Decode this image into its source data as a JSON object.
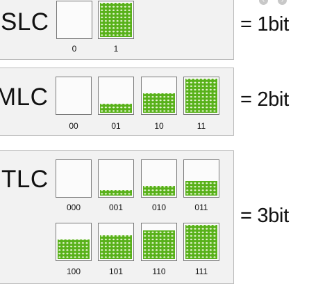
{
  "panels": [
    {
      "label": "SLC",
      "equation": "= 1bit",
      "cells": [
        {
          "code": "0",
          "fill": 0.0
        },
        {
          "code": "1",
          "fill": 1.0
        }
      ]
    },
    {
      "label": "MLC",
      "equation": "= 2bit",
      "cells": [
        {
          "code": "00",
          "fill": 0.0
        },
        {
          "code": "01",
          "fill": 0.27
        },
        {
          "code": "10",
          "fill": 0.58
        },
        {
          "code": "11",
          "fill": 1.0
        }
      ]
    },
    {
      "label": "TLC",
      "equation": "= 3bit",
      "cells": [
        {
          "code": "000",
          "fill": 0.0
        },
        {
          "code": "001",
          "fill": 0.16
        },
        {
          "code": "010",
          "fill": 0.29
        },
        {
          "code": "011",
          "fill": 0.43
        },
        {
          "code": "100",
          "fill": 0.57
        },
        {
          "code": "101",
          "fill": 0.7
        },
        {
          "code": "110",
          "fill": 0.84
        },
        {
          "code": "111",
          "fill": 1.0
        }
      ]
    }
  ],
  "colors": {
    "fill": "#58b11a",
    "dot": "#e8f5d4",
    "panel_bg": "#f2f2f2"
  },
  "icons": [
    "link-icon",
    "nav-icon-1",
    "nav-icon-2"
  ]
}
